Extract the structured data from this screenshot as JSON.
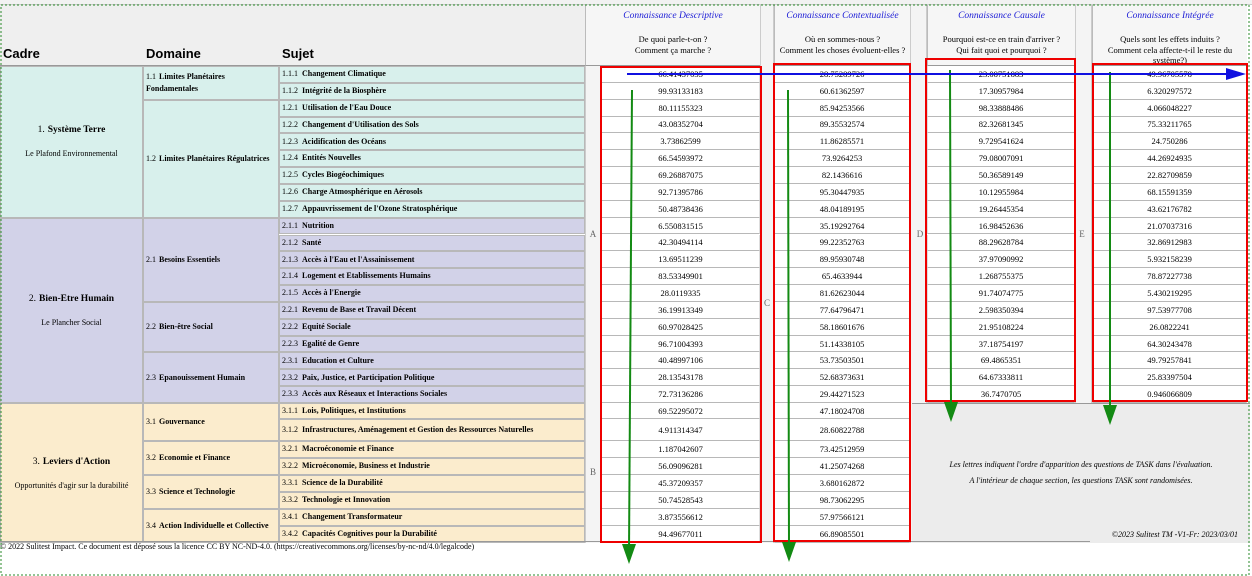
{
  "header": {
    "columns": [
      "Cadre",
      "Domaine",
      "Sujet"
    ]
  },
  "questions": [
    {
      "title": "Connaissance Descriptive",
      "line1": "De quoi parle-t-on ?",
      "line2": "Comment ça marche ?"
    },
    {
      "title": "Connaissance Contextualisée",
      "line1": "Où en sommes-nous ?",
      "line2": "Comment les choses évoluent-elles ?"
    },
    {
      "title": "Connaissance Causale",
      "line1": "Pourquoi est-ce en train d'arriver ?",
      "line2": "Qui fait quoi et pourquoi ?"
    },
    {
      "title": "Connaissance Intégrée",
      "line1": "Quels sont les effets induits ?",
      "line2": "Comment cela affecte-t-il le reste du système?)"
    }
  ],
  "letters": [
    "A",
    "B",
    "C",
    "D",
    "E"
  ],
  "cadres": [
    {
      "number": "1.",
      "name": "Système Terre",
      "subtitle": "Le Plafond Environnemental",
      "domaines": [
        {
          "number": "1.1",
          "name": "Limites Planétaires Fondamentales",
          "sujets": [
            {
              "number": "1.1.1",
              "name": "Changement Climatique",
              "scores": [
                "66.41437035",
                "28.75289726",
                "23.08751883",
                "49.96705578"
              ]
            },
            {
              "number": "1.1.2",
              "name": "Intégrité de la Biosphère",
              "scores": [
                "99.93133183",
                "60.61362597",
                "17.30957984",
                "6.320297572"
              ]
            }
          ]
        },
        {
          "number": "1.2",
          "name": "Limites Planétaires Régulatrices",
          "sujets": [
            {
              "number": "1.2.1",
              "name": "Utilisation de l'Eau Douce",
              "scores": [
                "80.11155323",
                "85.94253566",
                "98.33888486",
                "4.066048227"
              ]
            },
            {
              "number": "1.2.2",
              "name": "Changement d'Utilisation des Sols",
              "scores": [
                "43.08352704",
                "89.35532574",
                "82.32681345",
                "75.33211765"
              ]
            },
            {
              "number": "1.2.3",
              "name": "Acidification des Océans",
              "scores": [
                "3.73862599",
                "11.86285571",
                "9.729541624",
                "24.750286"
              ]
            },
            {
              "number": "1.2.4",
              "name": "Entités Nouvelles",
              "scores": [
                "66.54593972",
                "73.9264253",
                "79.08007091",
                "44.26924935"
              ]
            },
            {
              "number": "1.2.5",
              "name": "Cycles Biogéochimiques",
              "scores": [
                "69.26887075",
                "82.1436616",
                "50.36589149",
                "22.82709859"
              ]
            },
            {
              "number": "1.2.6",
              "name": "Charge Atmosphérique en Aérosols",
              "scores": [
                "92.71395786",
                "95.30447935",
                "10.12955984",
                "68.15591359"
              ]
            },
            {
              "number": "1.2.7",
              "name": "Appauvrissement de l'Ozone Stratosphérique",
              "scores": [
                "50.48738436",
                "48.04189195",
                "19.26445354",
                "43.62176782"
              ]
            }
          ]
        }
      ]
    },
    {
      "number": "2.",
      "name": "Bien-Etre Humain",
      "subtitle": "Le Plancher Social",
      "domaines": [
        {
          "number": "2.1",
          "name": "Besoins Essentiels",
          "sujets": [
            {
              "number": "2.1.1",
              "name": "Nutrition",
              "scores": [
                "6.550831515",
                "35.19292764",
                "16.98452636",
                "21.07037316"
              ]
            },
            {
              "number": "2.1.2",
              "name": "Santé",
              "scores": [
                "42.30494114",
                "99.22352763",
                "88.29628784",
                "32.86912983"
              ]
            },
            {
              "number": "2.1.3",
              "name": "Accès à l'Eau et l'Assainissement",
              "scores": [
                "13.69511239",
                "89.95930748",
                "37.97090992",
                "5.932158239"
              ]
            },
            {
              "number": "2.1.4",
              "name": "Logement et Etablissements Humains",
              "scores": [
                "83.53349901",
                "65.4633944",
                "1.268755375",
                "78.87227738"
              ]
            },
            {
              "number": "2.1.5",
              "name": "Accès à l'Energie",
              "scores": [
                "28.0119335",
                "81.62623044",
                "91.74074775",
                "5.430219295"
              ]
            }
          ]
        },
        {
          "number": "2.2",
          "name": "Bien-être Social",
          "sujets": [
            {
              "number": "2.2.1",
              "name": "Revenu de Base et Travail Décent",
              "scores": [
                "36.19913349",
                "77.64796471",
                "2.598350394",
                "97.53977708"
              ]
            },
            {
              "number": "2.2.2",
              "name": "Equité Sociale",
              "scores": [
                "60.97028425",
                "58.18601676",
                "21.95108224",
                "26.0822241"
              ]
            },
            {
              "number": "2.2.3",
              "name": "Egalité de Genre",
              "scores": [
                "96.71004393",
                "51.14338105",
                "37.18754197",
                "64.30243478"
              ]
            }
          ]
        },
        {
          "number": "2.3",
          "name": "Epanouissement Humain",
          "sujets": [
            {
              "number": "2.3.1",
              "name": "Education et Culture",
              "scores": [
                "40.48997106",
                "53.73503501",
                "69.4865351",
                "49.79257841"
              ]
            },
            {
              "number": "2.3.2",
              "name": "Paix, Justice, et Participation Politique",
              "scores": [
                "28.13543178",
                "52.68373631",
                "64.67333811",
                "25.83397504"
              ]
            },
            {
              "number": "2.3.3",
              "name": "Accès aux Réseaux et Interactions Sociales",
              "scores": [
                "72.73136286",
                "29.44271523",
                "36.7470705",
                "0.946066809"
              ]
            }
          ]
        }
      ]
    },
    {
      "number": "3.",
      "name": "Leviers d'Action",
      "subtitle": "Opportunités d'agir sur la durabilité",
      "domaines": [
        {
          "number": "3.1",
          "name": "Gouvernance",
          "sujets": [
            {
              "number": "3.1.1",
              "name": "Lois, Politiques, et Institutions",
              "scores": [
                "69.52295072",
                "47.18024708"
              ]
            },
            {
              "number": "3.1.2",
              "name": "Infrastructures, Aménagement et Gestion des Ressources Naturelles",
              "scores": [
                "4.911314347",
                "28.60822788"
              ]
            }
          ]
        },
        {
          "number": "3.2",
          "name": "Economie et Finance",
          "sujets": [
            {
              "number": "3.2.1",
              "name": "Macroéconomie et Finance",
              "scores": [
                "1.187042607",
                "73.42512959"
              ]
            },
            {
              "number": "3.2.2",
              "name": "Microéconomie, Business et Industrie",
              "scores": [
                "56.09096281",
                "41.25074268"
              ]
            }
          ]
        },
        {
          "number": "3.3",
          "name": "Science et Technologie",
          "sujets": [
            {
              "number": "3.3.1",
              "name": "Science de la Durabilité",
              "scores": [
                "45.37209357",
                "3.680162872"
              ]
            },
            {
              "number": "3.3.2",
              "name": "Technologie et Innovation",
              "scores": [
                "50.74528543",
                "98.73062295"
              ]
            }
          ]
        },
        {
          "number": "3.4",
          "name": "Action Individuelle et Collective",
          "sujets": [
            {
              "number": "3.4.1",
              "name": "Changement Transformateur",
              "scores": [
                "3.873556612",
                "57.97566121"
              ]
            },
            {
              "number": "3.4.2",
              "name": "Capacités Cognitives pour la Durabilité",
              "scores": [
                "94.49677011",
                "66.89085501"
              ]
            }
          ]
        }
      ]
    }
  ],
  "notes": [
    "Les lettres indiquent l'ordre d'apparition des questions de TASK dans l'évaluation.",
    "A l'intérieur de chaque section, les questions TASK sont randomisées."
  ],
  "footer": {
    "license": "© 2022 Sulitest Impact. Ce document est déposé sous la licence CC BY NC-ND-4.0. (https://creativecommons.org/licenses/by-nc-nd/4.0/legalcode)",
    "version": "©2023 Sulitest TM -V1-Fr: 2023/03/01"
  }
}
